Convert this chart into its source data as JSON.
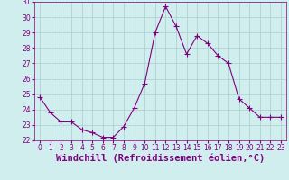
{
  "x": [
    0,
    1,
    2,
    3,
    4,
    5,
    6,
    7,
    8,
    9,
    10,
    11,
    12,
    13,
    14,
    15,
    16,
    17,
    18,
    19,
    20,
    21,
    22,
    23
  ],
  "y": [
    24.8,
    23.8,
    23.2,
    23.2,
    22.7,
    22.5,
    22.2,
    22.2,
    22.9,
    24.1,
    25.7,
    29.0,
    30.7,
    29.4,
    27.6,
    28.8,
    28.3,
    27.5,
    27.0,
    24.7,
    24.1,
    23.5,
    23.5,
    23.5
  ],
  "line_color": "#800080",
  "marker": "+",
  "marker_size": 5,
  "bg_color": "#d0eeee",
  "grid_color": "#aacccc",
  "xlabel": "Windchill (Refroidissement éolien,°C)",
  "xlabel_color": "#800080",
  "ylim": [
    22,
    31
  ],
  "xlim": [
    -0.5,
    23.5
  ],
  "yticks": [
    22,
    23,
    24,
    25,
    26,
    27,
    28,
    29,
    30,
    31
  ],
  "xticks": [
    0,
    1,
    2,
    3,
    4,
    5,
    6,
    7,
    8,
    9,
    10,
    11,
    12,
    13,
    14,
    15,
    16,
    17,
    18,
    19,
    20,
    21,
    22,
    23
  ],
  "tick_color": "#800080",
  "tick_label_size": 5.5,
  "xlabel_size": 7.5,
  "spine_color": "#800080"
}
